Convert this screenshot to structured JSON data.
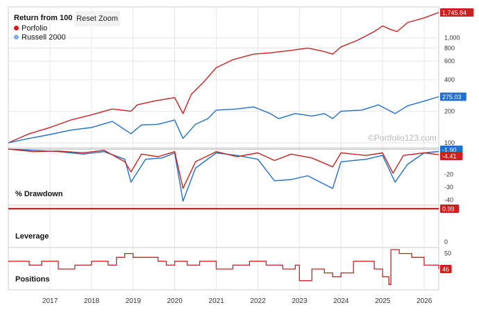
{
  "colors": {
    "portfolio": "#cc1f1f",
    "russell": "#1f6fcf",
    "russell_dot": "#7fb0e0",
    "grid": "#e6e6e6",
    "axis_text": "#333333",
    "watermark": "#b8b8b8"
  },
  "legend": {
    "title": "Return from 100",
    "items": [
      {
        "label": "Porfolio",
        "color": "#cc1f1f"
      },
      {
        "label": "Russell 2000",
        "color": "#7fb0e0"
      }
    ]
  },
  "reset_zoom_label": "Reset Zoom",
  "watermark": "©Portfolio123.com",
  "panels": {
    "drawdown_label": "% Drawdown",
    "leverage_label": "Leverage",
    "positions_label": "Positions"
  },
  "chart_data": [
    {
      "type": "line",
      "title": "Return from 100",
      "y_scale": "log",
      "y_ticks": [
        "100",
        "200",
        "400",
        "600",
        "800",
        "1,000"
      ],
      "x_ticks": [
        "2017",
        "2018",
        "2019",
        "2020",
        "2021",
        "2022",
        "2023",
        "2024",
        "2025",
        "2026"
      ],
      "series": [
        {
          "name": "Porfolio",
          "color": "#cc1f1f",
          "last_label": "1,745.84",
          "points": [
            [
              "2016.0",
              100
            ],
            [
              "2016.5",
              122
            ],
            [
              "2017.0",
              140
            ],
            [
              "2017.5",
              165
            ],
            [
              "2018.0",
              185
            ],
            [
              "2018.5",
              210
            ],
            [
              "2018.95",
              200
            ],
            [
              "2019.1",
              230
            ],
            [
              "2019.5",
              250
            ],
            [
              "2020.0",
              270
            ],
            [
              "2020.2",
              190
            ],
            [
              "2020.4",
              290
            ],
            [
              "2020.7",
              380
            ],
            [
              "2021.0",
              520
            ],
            [
              "2021.4",
              620
            ],
            [
              "2021.9",
              700
            ],
            [
              "2022.3",
              720
            ],
            [
              "2022.8",
              760
            ],
            [
              "2023.2",
              800
            ],
            [
              "2023.6",
              740
            ],
            [
              "2023.8",
              700
            ],
            [
              "2024.0",
              820
            ],
            [
              "2024.4",
              950
            ],
            [
              "2024.8",
              1150
            ],
            [
              "2025.0",
              1300
            ],
            [
              "2025.2",
              1200
            ],
            [
              "2025.35",
              1150
            ],
            [
              "2025.6",
              1400
            ],
            [
              "2026.0",
              1550
            ],
            [
              "2026.35",
              1745.84
            ]
          ]
        },
        {
          "name": "Russell 2000",
          "color": "#1f6fcf",
          "last_label": "275.03",
          "points": [
            [
              "2016.0",
              100
            ],
            [
              "2016.5",
              110
            ],
            [
              "2017.0",
              120
            ],
            [
              "2017.5",
              132
            ],
            [
              "2018.0",
              140
            ],
            [
              "2018.5",
              160
            ],
            [
              "2018.95",
              122
            ],
            [
              "2019.2",
              148
            ],
            [
              "2019.6",
              150
            ],
            [
              "2020.0",
              165
            ],
            [
              "2020.2",
              110
            ],
            [
              "2020.5",
              150
            ],
            [
              "2020.8",
              170
            ],
            [
              "2021.0",
              205
            ],
            [
              "2021.5",
              210
            ],
            [
              "2021.9",
              220
            ],
            [
              "2022.3",
              190
            ],
            [
              "2022.5",
              170
            ],
            [
              "2022.9",
              190
            ],
            [
              "2023.3",
              180
            ],
            [
              "2023.6",
              190
            ],
            [
              "2023.8",
              170
            ],
            [
              "2024.0",
              200
            ],
            [
              "2024.5",
              205
            ],
            [
              "2024.9",
              230
            ],
            [
              "2025.3",
              190
            ],
            [
              "2025.6",
              225
            ],
            [
              "2026.0",
              250
            ],
            [
              "2026.35",
              275.03
            ]
          ]
        }
      ]
    },
    {
      "type": "line",
      "title": "% Drawdown",
      "y_ticks": [
        "-30",
        "-20",
        "-40"
      ],
      "series": [
        {
          "name": "Porfolio",
          "color": "#cc1f1f",
          "last_label": "-4.41",
          "points": [
            [
              "2016.0",
              0
            ],
            [
              "2016.6",
              -2
            ],
            [
              "2017.2",
              -1.5
            ],
            [
              "2017.8",
              -3
            ],
            [
              "2018.3",
              -1
            ],
            [
              "2018.8",
              -10
            ],
            [
              "2018.95",
              -18
            ],
            [
              "2019.2",
              -4
            ],
            [
              "2019.6",
              -6
            ],
            [
              "2020.0",
              -2
            ],
            [
              "2020.2",
              -31
            ],
            [
              "2020.5",
              -10
            ],
            [
              "2021.0",
              -2
            ],
            [
              "2021.5",
              -6
            ],
            [
              "2022.0",
              -3
            ],
            [
              "2022.4",
              -9
            ],
            [
              "2022.8",
              -4
            ],
            [
              "2023.3",
              -7
            ],
            [
              "2023.8",
              -14
            ],
            [
              "2024.0",
              -3
            ],
            [
              "2024.6",
              -5
            ],
            [
              "2025.0",
              -3
            ],
            [
              "2025.25",
              -19
            ],
            [
              "2025.5",
              -5
            ],
            [
              "2026.0",
              -3
            ],
            [
              "2026.35",
              -4.41
            ]
          ]
        },
        {
          "name": "Russell 2000",
          "color": "#1f6fcf",
          "last_label": "-1.90",
          "points": [
            [
              "2016.0",
              0
            ],
            [
              "2016.6",
              -1
            ],
            [
              "2017.2",
              -2
            ],
            [
              "2017.8",
              -4
            ],
            [
              "2018.3",
              -2
            ],
            [
              "2018.8",
              -8
            ],
            [
              "2018.95",
              -26
            ],
            [
              "2019.3",
              -8
            ],
            [
              "2019.7",
              -7
            ],
            [
              "2020.0",
              -3
            ],
            [
              "2020.2",
              -41
            ],
            [
              "2020.5",
              -15
            ],
            [
              "2021.0",
              -3
            ],
            [
              "2021.5",
              -5
            ],
            [
              "2022.0",
              -8
            ],
            [
              "2022.4",
              -25
            ],
            [
              "2022.8",
              -24
            ],
            [
              "2023.2",
              -21
            ],
            [
              "2023.5",
              -26
            ],
            [
              "2023.8",
              -31
            ],
            [
              "2024.0",
              -10
            ],
            [
              "2024.6",
              -8
            ],
            [
              "2025.0",
              -5
            ],
            [
              "2025.3",
              -26
            ],
            [
              "2025.6",
              -12
            ],
            [
              "2026.0",
              -3
            ],
            [
              "2026.35",
              -1.9
            ]
          ]
        }
      ]
    },
    {
      "type": "line",
      "title": "Leverage",
      "y_ticks": [
        "0"
      ],
      "series": [
        {
          "name": "Porfolio",
          "color": "#cc1f1f",
          "last_label": "0.99",
          "points": [
            [
              "2016.0",
              0.99
            ],
            [
              "2026.35",
              0.99
            ]
          ]
        }
      ]
    },
    {
      "type": "line",
      "title": "Positions",
      "y_ticks": [
        "50"
      ],
      "series": [
        {
          "name": "Porfolio",
          "color": "#cc1f1f",
          "last_label": "46",
          "points": [
            [
              "2016.0",
              48
            ],
            [
              "2016.4",
              48
            ],
            [
              "2016.5",
              47
            ],
            [
              "2016.8",
              48
            ],
            [
              "2017.2",
              46
            ],
            [
              "2017.6",
              47
            ],
            [
              "2018.0",
              48
            ],
            [
              "2018.4",
              47
            ],
            [
              "2018.6",
              49
            ],
            [
              "2018.8",
              50
            ],
            [
              "2019.0",
              49
            ],
            [
              "2019.4",
              49
            ],
            [
              "2019.6",
              48
            ],
            [
              "2019.8",
              47
            ],
            [
              "2020.0",
              48
            ],
            [
              "2020.3",
              47
            ],
            [
              "2020.6",
              48
            ],
            [
              "2021.0",
              46
            ],
            [
              "2021.4",
              47
            ],
            [
              "2021.8",
              48
            ],
            [
              "2022.2",
              47
            ],
            [
              "2022.6",
              46
            ],
            [
              "2022.9",
              47
            ],
            [
              "2023.0",
              43
            ],
            [
              "2023.3",
              46
            ],
            [
              "2023.6",
              45
            ],
            [
              "2023.8",
              44
            ],
            [
              "2024.0",
              45
            ],
            [
              "2024.3",
              48
            ],
            [
              "2024.6",
              48
            ],
            [
              "2024.8",
              46
            ],
            [
              "2025.0",
              44
            ],
            [
              "2025.15",
              42
            ],
            [
              "2025.2",
              51
            ],
            [
              "2025.4",
              50
            ],
            [
              "2025.7",
              49
            ],
            [
              "2026.0",
              47
            ],
            [
              "2026.35",
              46
            ]
          ]
        }
      ]
    }
  ]
}
